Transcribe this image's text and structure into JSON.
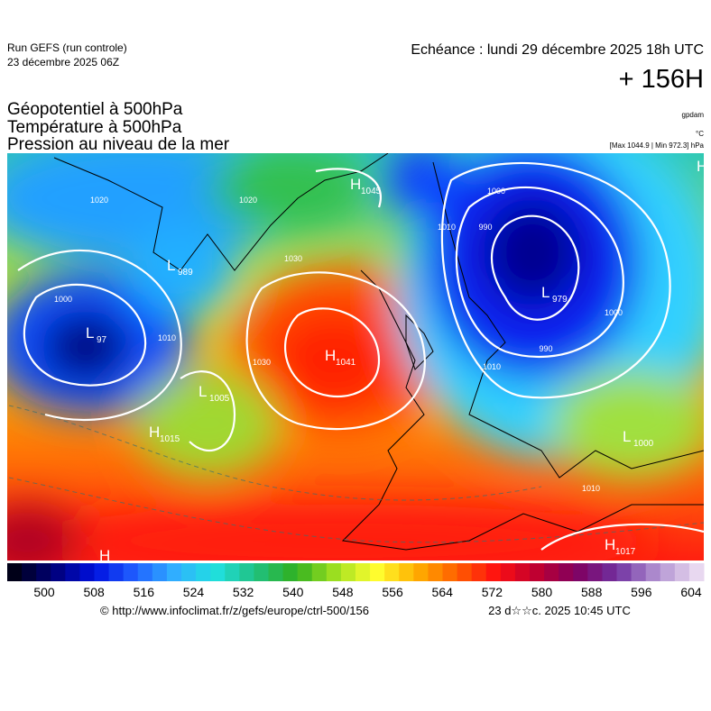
{
  "header": {
    "run": "Run GEFS (run controle)",
    "run_date": "23 décembre 2025 06Z",
    "valid": "Echéance : lundi 29 décembre 2025 18h UTC",
    "lead": "+ 156H",
    "fields": [
      "Géopotentiel à 500hPa",
      "Température à 500hPa",
      "Pression au niveau de la mer"
    ],
    "units": [
      "gpdam",
      "°C",
      "[Max 1044.9 | Min 972.3] hPa"
    ]
  },
  "centers": [
    {
      "letter": "H",
      "value": 1045
    },
    {
      "letter": "L",
      "value": 989
    },
    {
      "letter": "L",
      "value": 97
    },
    {
      "letter": "H",
      "value": 1041
    },
    {
      "letter": "L",
      "value": 1005
    },
    {
      "letter": "H",
      "value": 1015
    },
    {
      "letter": "L",
      "value": 979
    },
    {
      "letter": "L",
      "value": 1000
    },
    {
      "letter": "H",
      "value": 1017
    },
    {
      "letter": "H"
    },
    {
      "letter": "H"
    }
  ],
  "contour_labels": [
    1020,
    1020,
    1000,
    1010,
    1030,
    1000,
    990,
    1010,
    990,
    1000,
    1010,
    1030,
    1010
  ],
  "colorbar": {
    "ticks": [
      500,
      508,
      516,
      524,
      532,
      540,
      548,
      556,
      564,
      572,
      580,
      588,
      596,
      604
    ],
    "stops": [
      "#000018",
      "#00007a",
      "#0010e0",
      "#2060ff",
      "#30b0ff",
      "#20e0e0",
      "#20c080",
      "#30b020",
      "#a0e020",
      "#ffff30",
      "#ffb000",
      "#ff6000",
      "#ff1010",
      "#c00030",
      "#800060",
      "#7030a0",
      "#b090d0",
      "#e8d8f0"
    ]
  },
  "footer": {
    "url": "© http://www.infoclimat.fr/z/gefs/europe/ctrl-500/156",
    "stamp": "23 d☆☆c. 2025 10:45 UTC"
  }
}
